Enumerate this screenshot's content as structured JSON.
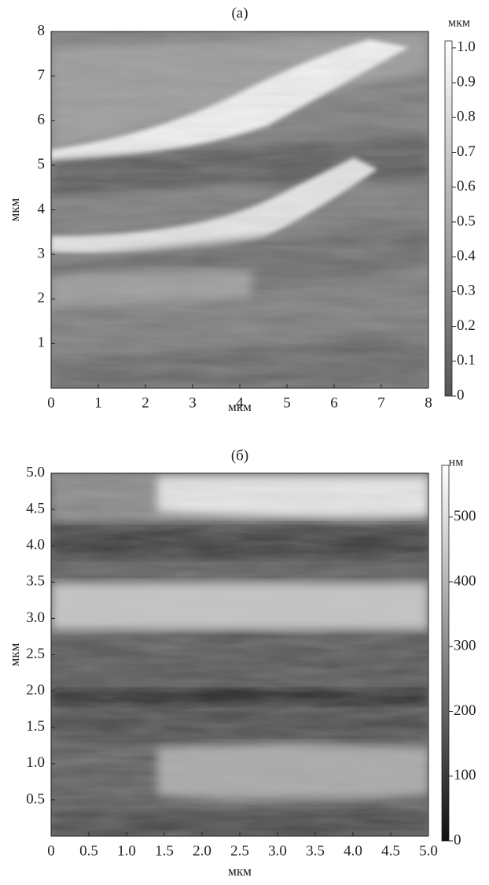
{
  "chart_data": [
    {
      "type": "image",
      "title": "(а)",
      "xlabel": "мкм",
      "ylabel": "мкм",
      "xlim": [
        0,
        8
      ],
      "ylim": [
        0,
        8
      ],
      "xticks": [
        0,
        1,
        2,
        3,
        4,
        5,
        6,
        7,
        8
      ],
      "yticks": [
        1,
        2,
        3,
        4,
        5,
        6,
        7,
        8
      ],
      "colorbar": {
        "label": "мкм",
        "lim": [
          0,
          1.02
        ],
        "colors": [
          "#555555",
          "#ffffff"
        ],
        "ticks": [
          0,
          0.1,
          0.2,
          0.3,
          0.4,
          0.5,
          0.6,
          0.7,
          0.8,
          0.9,
          {
            "value": 1,
            "label": "1.0"
          }
        ]
      }
    },
    {
      "type": "image",
      "title": "(б)",
      "xlabel": "мкм",
      "ylabel": "мкм",
      "xlim": [
        0,
        5
      ],
      "ylim": [
        0,
        5
      ],
      "xticks": [
        0,
        0.5,
        {
          "value": 1,
          "label": "1.0"
        },
        1.5,
        {
          "value": 2,
          "label": "2.0"
        },
        2.5,
        {
          "value": 3,
          "label": "3.0"
        },
        3.5,
        {
          "value": 4,
          "label": "4.0"
        },
        4.5,
        {
          "value": 5,
          "label": "5.0"
        }
      ],
      "yticks": [
        0.5,
        {
          "value": 1,
          "label": "1.0"
        },
        1.5,
        {
          "value": 2,
          "label": "2.0"
        },
        2.5,
        {
          "value": 3,
          "label": "3.0"
        },
        3.5,
        {
          "value": 4,
          "label": "4.0"
        },
        4.5,
        {
          "value": 5,
          "label": "5.0"
        }
      ],
      "colorbar": {
        "label": "нм",
        "lim": [
          0,
          580
        ],
        "colors": [
          "#111111",
          "#ffffff"
        ],
        "ticks": [
          0,
          100,
          200,
          300,
          400,
          500
        ]
      }
    }
  ]
}
